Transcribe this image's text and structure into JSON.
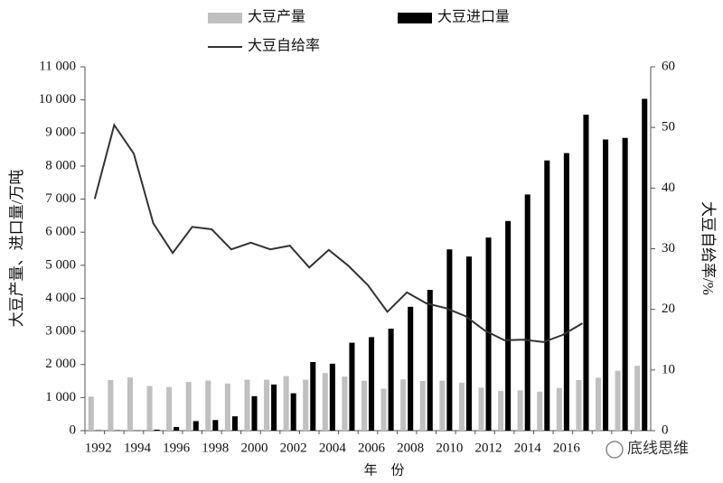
{
  "chart_data": {
    "type": "bar",
    "x_label": "年　份",
    "y_label": "大豆产量、进口量/万吨",
    "y2_label": "大豆自给率/%",
    "watermark": "底线思维",
    "categories": [
      "1992",
      null,
      "1994",
      null,
      "1996",
      null,
      "1998",
      null,
      "2000",
      null,
      "2002",
      null,
      "2004",
      null,
      "2006",
      null,
      "2008",
      null,
      "2010",
      null,
      "2012",
      null,
      "2014",
      null,
      "2016",
      null,
      null,
      null,
      null
    ],
    "series": [
      {
        "name": "大豆产量",
        "type": "bar",
        "color": "#c0c0c0",
        "axis": "y",
        "values": [
          1030,
          1530,
          1610,
          1350,
          1320,
          1470,
          1515,
          1425,
          1540,
          1540,
          1650,
          1540,
          1740,
          1635,
          1510,
          1270,
          1550,
          1500,
          1510,
          1450,
          1300,
          1200,
          1220,
          1180,
          1290,
          1530,
          1600,
          1810,
          1960
        ]
      },
      {
        "name": "大豆进口量",
        "type": "bar",
        "color": "#000000",
        "axis": "y",
        "values": [
          12,
          10,
          5,
          30,
          111,
          288,
          320,
          432,
          1042,
          1394,
          1131,
          2074,
          2023,
          2659,
          2827,
          3082,
          3744,
          4255,
          5480,
          5264,
          5838,
          6338,
          7140,
          8169,
          8391,
          9553,
          8803,
          8851,
          10033
        ]
      },
      {
        "name": "大豆自给率",
        "type": "line",
        "color": "#333333",
        "axis": "y2",
        "values": [
          38.2,
          50.4,
          45.7,
          34.2,
          29.3,
          33.6,
          33.2,
          29.9,
          31.0,
          29.9,
          30.5,
          26.9,
          29.8,
          27.2,
          24.0,
          19.6,
          22.8,
          21.0,
          20.2,
          18.9,
          16.5,
          14.9,
          15.0,
          14.6,
          15.8,
          17.7,
          null,
          null,
          null
        ]
      }
    ],
    "ylim": [
      0,
      11000
    ],
    "yticks": [
      0,
      {
        "value": 1000,
        "label": "1 000"
      },
      {
        "value": 2000,
        "label": "2 000"
      },
      {
        "value": 3000,
        "label": "3 000"
      },
      {
        "value": 4000,
        "label": "4 000"
      },
      {
        "value": 5000,
        "label": "5 000"
      },
      {
        "value": 6000,
        "label": "6 000"
      },
      {
        "value": 7000,
        "label": "7 000"
      },
      {
        "value": 8000,
        "label": "8 000"
      },
      {
        "value": 9000,
        "label": "9 000"
      },
      {
        "value": 10000,
        "label": "10 000"
      },
      {
        "value": 11000,
        "label": "11 000"
      }
    ],
    "y2lim": [
      0,
      60
    ],
    "y2ticks": [
      0,
      10,
      20,
      30,
      40,
      50,
      60
    ],
    "grid": false
  }
}
